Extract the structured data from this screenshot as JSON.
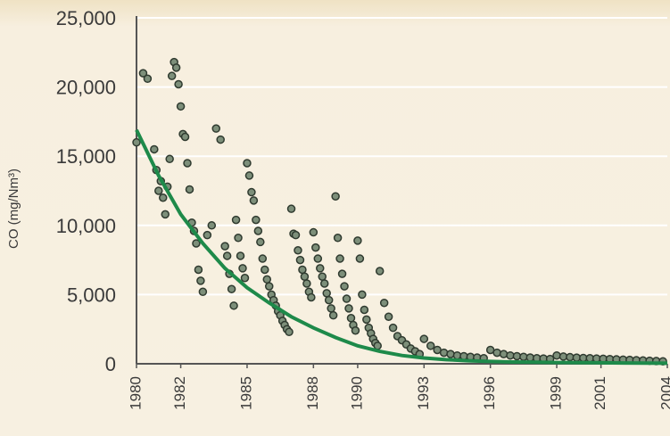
{
  "chart_data": {
    "type": "scatter",
    "title": "",
    "xlabel": "",
    "ylabel": "CO (mg/Nm³)",
    "ylim": [
      0,
      25000
    ],
    "xlim": [
      1980,
      2004
    ],
    "grid": true,
    "y_ticks": [
      {
        "value": 0,
        "label": "0"
      },
      {
        "value": 5000,
        "label": "5,000"
      },
      {
        "value": 10000,
        "label": "10,000"
      },
      {
        "value": 15000,
        "label": "15,000"
      },
      {
        "value": 20000,
        "label": "20,000"
      },
      {
        "value": 25000,
        "label": "25,000"
      }
    ],
    "x_ticks": [
      {
        "value": 1980,
        "label": "1980"
      },
      {
        "value": 1982,
        "label": "1982"
      },
      {
        "value": 1985,
        "label": "1985"
      },
      {
        "value": 1988,
        "label": "1988"
      },
      {
        "value": 1990,
        "label": "1990"
      },
      {
        "value": 1993,
        "label": "1993"
      },
      {
        "value": 1996,
        "label": "1996"
      },
      {
        "value": 1999,
        "label": "1999"
      },
      {
        "value": 2001,
        "label": "2001"
      },
      {
        "value": 2004,
        "label": "2004"
      }
    ],
    "series": [
      {
        "kind": "points",
        "color": "#7d8f7a",
        "stroke": "#2f3a2f",
        "x": [
          1980.0,
          1980.3,
          1980.5,
          1980.8,
          1980.9,
          1981.0,
          1981.1,
          1981.2,
          1981.3,
          1981.4,
          1981.5,
          1981.6,
          1981.7,
          1981.8,
          1981.9,
          1982.0,
          1982.1,
          1982.2,
          1982.3,
          1982.4,
          1982.5,
          1982.6,
          1982.7,
          1982.8,
          1982.9,
          1983.0,
          1983.2,
          1983.4,
          1983.6,
          1983.8,
          1984.0,
          1984.1,
          1984.2,
          1984.3,
          1984.4,
          1984.5,
          1984.6,
          1984.7,
          1984.8,
          1984.9,
          1985.0,
          1985.1,
          1985.2,
          1985.3,
          1985.4,
          1985.5,
          1985.6,
          1985.7,
          1985.8,
          1985.9,
          1986.0,
          1986.1,
          1986.2,
          1986.3,
          1986.4,
          1986.5,
          1986.6,
          1986.7,
          1986.8,
          1986.9,
          1987.0,
          1987.1,
          1987.2,
          1987.3,
          1987.4,
          1987.5,
          1987.6,
          1987.7,
          1987.8,
          1987.9,
          1988.0,
          1988.1,
          1988.2,
          1988.3,
          1988.4,
          1988.5,
          1988.6,
          1988.7,
          1988.8,
          1988.9,
          1989.0,
          1989.1,
          1989.2,
          1989.3,
          1989.4,
          1989.5,
          1989.6,
          1989.7,
          1989.8,
          1989.9,
          1990.0,
          1990.1,
          1990.2,
          1990.3,
          1990.4,
          1990.5,
          1990.6,
          1990.7,
          1990.8,
          1990.9,
          1991.0,
          1991.2,
          1991.4,
          1991.6,
          1991.8,
          1992.0,
          1992.2,
          1992.4,
          1992.6,
          1992.8,
          1993.0,
          1993.3,
          1993.6,
          1993.9,
          1994.2,
          1994.5,
          1994.8,
          1995.1,
          1995.4,
          1995.7,
          1996.0,
          1996.3,
          1996.6,
          1996.9,
          1997.2,
          1997.5,
          1997.8,
          1998.1,
          1998.4,
          1998.7,
          1999.0,
          1999.3,
          1999.6,
          1999.9,
          2000.2,
          2000.5,
          2000.8,
          2001.1,
          2001.4,
          2001.7,
          2002.0,
          2002.3,
          2002.6,
          2002.9,
          2003.2,
          2003.5,
          2003.8
        ],
        "y": [
          16000,
          21000,
          20600,
          15500,
          14000,
          12500,
          13200,
          12000,
          10800,
          12800,
          14800,
          20800,
          21800,
          21400,
          20200,
          18600,
          16600,
          16400,
          14500,
          12600,
          10200,
          9600,
          8700,
          6800,
          6000,
          5200,
          9300,
          10000,
          17000,
          16200,
          8500,
          7800,
          6500,
          5400,
          4200,
          10400,
          9100,
          7800,
          6900,
          6200,
          14500,
          13600,
          12400,
          11800,
          10400,
          9600,
          8800,
          7600,
          6800,
          6100,
          5600,
          5000,
          4600,
          4200,
          3800,
          3500,
          3100,
          2800,
          2500,
          2300,
          11200,
          9400,
          9300,
          8200,
          7500,
          6800,
          6300,
          5800,
          5200,
          4800,
          9500,
          8400,
          7600,
          6900,
          6300,
          5800,
          5100,
          4600,
          4000,
          3500,
          12100,
          9100,
          7600,
          6500,
          5600,
          4700,
          4000,
          3300,
          2800,
          2400,
          8900,
          7600,
          5000,
          3900,
          3200,
          2600,
          2200,
          1800,
          1500,
          1300,
          6700,
          4400,
          3400,
          2600,
          2000,
          1700,
          1400,
          1100,
          900,
          700,
          1800,
          1300,
          1000,
          800,
          700,
          600,
          550,
          500,
          450,
          400,
          1000,
          800,
          700,
          600,
          550,
          500,
          450,
          400,
          380,
          350,
          600,
          520,
          480,
          440,
          420,
          400,
          380,
          360,
          340,
          320,
          300,
          280,
          260,
          240,
          220,
          200,
          180
        ]
      },
      {
        "kind": "trend",
        "color": "#1e8a4a",
        "x": [
          1980,
          1981,
          1982,
          1983,
          1984,
          1985,
          1986,
          1987,
          1988,
          1989,
          1990,
          1991,
          1992,
          1993,
          1994,
          1995,
          1996,
          1997,
          1998,
          1999,
          2000,
          2001,
          2002,
          2003,
          2004
        ],
        "y": [
          16900,
          13600,
          10800,
          8700,
          6900,
          5500,
          4400,
          3400,
          2600,
          1900,
          1300,
          900,
          600,
          420,
          300,
          220,
          170,
          130,
          110,
          90,
          80,
          70,
          60,
          50,
          40
        ]
      }
    ]
  }
}
